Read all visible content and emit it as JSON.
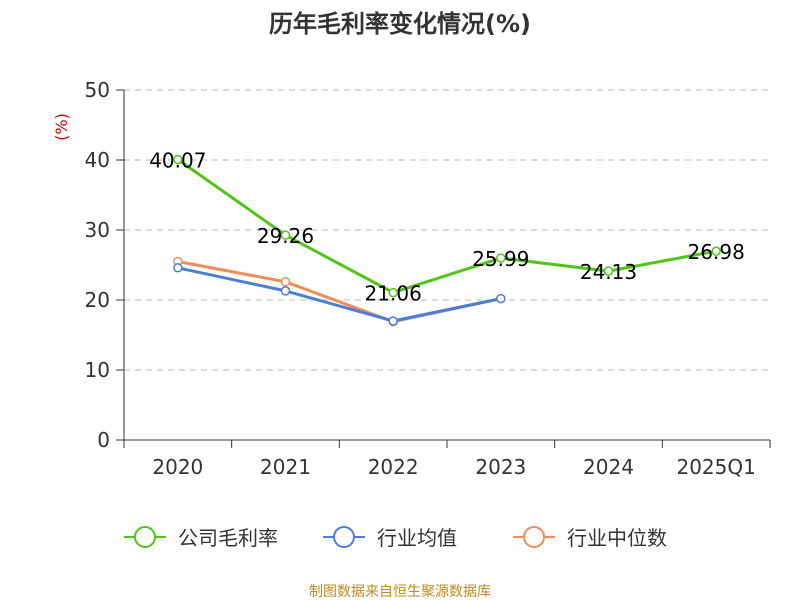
{
  "chart_data": {
    "type": "line",
    "title": "历年毛利率变化情况(%)",
    "ylabel": "(%)",
    "xlabel": "",
    "ylim": [
      0,
      50
    ],
    "yticks": [
      0,
      10,
      20,
      30,
      40,
      50
    ],
    "categories": [
      "2020",
      "2021",
      "2022",
      "2023",
      "2024",
      "2025Q1"
    ],
    "grid": true,
    "legend_position": "bottom",
    "series": [
      {
        "name": "公司毛利率",
        "color": "#52c41a",
        "values": [
          40.07,
          29.26,
          21.06,
          25.99,
          24.13,
          26.98
        ],
        "data_labels": [
          "40.07",
          "29.26",
          "21.06",
          "25.99",
          "24.13",
          "26.98"
        ]
      },
      {
        "name": "行业均值",
        "color": "#4a7fd6",
        "values": [
          24.6,
          21.3,
          17.0,
          20.2,
          null,
          null
        ]
      },
      {
        "name": "行业中位数",
        "color": "#f08c5a",
        "values": [
          25.5,
          22.6,
          16.9,
          20.2,
          null,
          null
        ]
      }
    ],
    "source": "制图数据来自恒生聚源数据库"
  }
}
